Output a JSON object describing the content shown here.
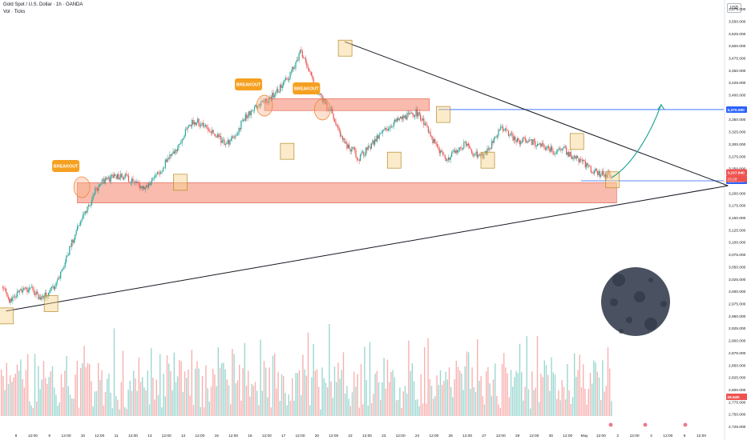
{
  "header": {
    "title": "Gold Spot / U.S. Dollar · 1h · OANDA",
    "volume_label": "Vol · Ticks",
    "currency": "USD"
  },
  "colors": {
    "up": "#26a69a",
    "down": "#ef5350",
    "zone_fill": "#f7a491",
    "zone_stroke": "#e0544a",
    "trend_line": "#131722",
    "level_line": "#2962ff",
    "box_fill": "#f6d38a",
    "box_stroke": "#b58b2a",
    "breakout_badge": "#f5a020",
    "arrow": "#26a69a",
    "moon": "#4a5261"
  },
  "chart_data": {
    "type": "candlestick",
    "symbol": "Gold Spot / U.S. Dollar",
    "timeframe": "1h",
    "exchange": "OANDA",
    "y_axis": {
      "ticks": [
        "3,575.000",
        "3,550.000",
        "3,525.000",
        "3,500.000",
        "3,475.000",
        "3,450.000",
        "3,425.000",
        "3,400.000",
        "3,375.000",
        "3,350.000",
        "3,325.000",
        "3,300.000",
        "3,275.000",
        "3,250.000",
        "3,225.000",
        "3,200.000",
        "3,175.000",
        "3,150.000",
        "3,125.000",
        "3,100.000",
        "3,075.000",
        "3,050.000",
        "3,025.000",
        "3,000.000",
        "2,975.000",
        "2,950.000",
        "2,925.000",
        "2,900.000",
        "2,875.000",
        "2,850.000",
        "2,825.000",
        "2,800.000",
        "2,775.000",
        "2,750.000",
        "2,725.000"
      ],
      "range": [
        2712,
        3580
      ]
    },
    "x_axis": {
      "ticks": [
        "8",
        "12:00",
        "9",
        "12:00",
        "10",
        "12:00",
        "11",
        "12:00",
        "13",
        "12:00",
        "14",
        "12:00",
        "15",
        "12:00",
        "16",
        "12:00",
        "17",
        "12:00",
        "20",
        "12:00",
        "22",
        "12:00",
        "23",
        "12:00",
        "24",
        "12:00",
        "25",
        "12:00",
        "27",
        "12:00",
        "29",
        "12:00",
        "30",
        "12:00",
        "May",
        "12:00",
        "2",
        "12:00",
        "4",
        "12:00",
        "6",
        "12:00"
      ]
    },
    "price_labels": {
      "current": "3,237.640",
      "countdown": "23:28",
      "resistance": "3,370.000",
      "support": "3,225.200",
      "volume": "26.84K"
    },
    "price_path": [
      [
        0,
        3010
      ],
      [
        2,
        2980
      ],
      [
        4,
        2998
      ],
      [
        6,
        3005
      ],
      [
        7,
        3002
      ],
      [
        9,
        2985
      ],
      [
        11,
        3000
      ],
      [
        13,
        3030
      ],
      [
        15,
        3080
      ],
      [
        17,
        3130
      ],
      [
        19,
        3160
      ],
      [
        21,
        3205
      ],
      [
        23,
        3225
      ],
      [
        24,
        3228
      ],
      [
        26,
        3235
      ],
      [
        28,
        3232
      ],
      [
        30,
        3220
      ],
      [
        32,
        3212
      ],
      [
        34,
        3225
      ],
      [
        36,
        3250
      ],
      [
        38,
        3280
      ],
      [
        40,
        3300
      ],
      [
        42,
        3340
      ],
      [
        44,
        3345
      ],
      [
        46,
        3330
      ],
      [
        48,
        3320
      ],
      [
        50,
        3300
      ],
      [
        52,
        3310
      ],
      [
        54,
        3345
      ],
      [
        56,
        3368
      ],
      [
        58,
        3380
      ],
      [
        60,
        3390
      ],
      [
        62,
        3410
      ],
      [
        64,
        3430
      ],
      [
        66,
        3465
      ],
      [
        67,
        3488
      ],
      [
        68,
        3475
      ],
      [
        70,
        3420
      ],
      [
        72,
        3390
      ],
      [
        73,
        3375
      ],
      [
        74,
        3370
      ],
      [
        75,
        3340
      ],
      [
        77,
        3300
      ],
      [
        79,
        3285
      ],
      [
        80,
        3270
      ],
      [
        82,
        3288
      ],
      [
        84,
        3310
      ],
      [
        86,
        3330
      ],
      [
        88,
        3345
      ],
      [
        90,
        3355
      ],
      [
        92,
        3360
      ],
      [
        93,
        3365
      ],
      [
        94,
        3355
      ],
      [
        96,
        3320
      ],
      [
        98,
        3290
      ],
      [
        100,
        3270
      ],
      [
        102,
        3285
      ],
      [
        104,
        3300
      ],
      [
        106,
        3280
      ],
      [
        108,
        3275
      ],
      [
        110,
        3300
      ],
      [
        112,
        3330
      ],
      [
        114,
        3320
      ],
      [
        116,
        3305
      ],
      [
        118,
        3310
      ],
      [
        120,
        3300
      ],
      [
        122,
        3295
      ],
      [
        124,
        3285
      ],
      [
        126,
        3290
      ],
      [
        128,
        3275
      ],
      [
        130,
        3265
      ],
      [
        132,
        3250
      ],
      [
        134,
        3240
      ],
      [
        136,
        3237
      ]
    ],
    "breakout_label": "BREAKOUT",
    "breakouts": [
      {
        "t": 18,
        "price": 3212
      },
      {
        "t": 59,
        "price": 3378
      },
      {
        "t": 72,
        "price": 3370
      }
    ],
    "zones": [
      {
        "t0": 17,
        "t1": 138,
        "p0": 3180,
        "p1": 3221
      },
      {
        "t0": 59,
        "t1": 96,
        "p0": 3368,
        "p1": 3392
      }
    ],
    "trend_lines": [
      {
        "t0": 1,
        "p0": 2960,
        "t1": 163,
        "p1": 3215
      },
      {
        "t0": 77,
        "p0": 3508,
        "t1": 163,
        "p1": 3215
      }
    ],
    "horizontal_levels": [
      {
        "t0": 98,
        "price": 3370
      },
      {
        "t0": 130,
        "price": 3225
      }
    ],
    "boxes": [
      {
        "t": 1,
        "price": 2950
      },
      {
        "t": 11,
        "price": 2975
      },
      {
        "t": 40,
        "price": 3222
      },
      {
        "t": 64,
        "price": 3285
      },
      {
        "t": 77,
        "price": 3495
      },
      {
        "t": 88,
        "price": 3267
      },
      {
        "t": 99,
        "price": 3360
      },
      {
        "t": 109,
        "price": 3267
      },
      {
        "t": 129,
        "price": 3305
      },
      {
        "t": 137,
        "price": 3227
      }
    ],
    "projection": [
      [
        137,
        3232
      ],
      [
        142,
        3260
      ],
      [
        146,
        3330
      ],
      [
        148,
        3380
      ]
    ]
  }
}
